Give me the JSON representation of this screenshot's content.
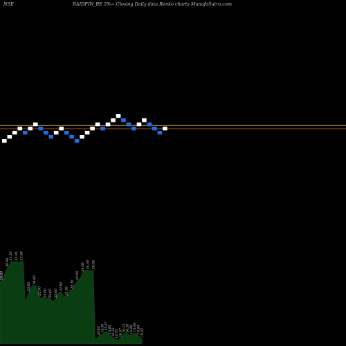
{
  "header": {
    "exchange": "NSE",
    "title": "RAIDFIN_BE 5%~  Closing Daily data  Renko  charts MunafaSutra.com"
  },
  "colors": {
    "background": "#000000",
    "up_brick": "#ffffff",
    "down_brick": "#1e6fe0",
    "ref_line_1": "#d3863a",
    "ref_line_2": "#a0522d",
    "volume_fill": "#0b3d12"
  },
  "chart_data": [
    {
      "type": "renko",
      "title": "",
      "brick_step": 1,
      "bricks": [
        {
          "d": "up",
          "level": 0
        },
        {
          "d": "up",
          "level": 1
        },
        {
          "d": "up",
          "level": 2
        },
        {
          "d": "up",
          "level": 3
        },
        {
          "d": "down",
          "level": 2
        },
        {
          "d": "up",
          "level": 3
        },
        {
          "d": "up",
          "level": 4
        },
        {
          "d": "down",
          "level": 3
        },
        {
          "d": "down",
          "level": 2
        },
        {
          "d": "down",
          "level": 1
        },
        {
          "d": "up",
          "level": 2
        },
        {
          "d": "up",
          "level": 3
        },
        {
          "d": "down",
          "level": 2
        },
        {
          "d": "down",
          "level": 1
        },
        {
          "d": "down",
          "level": 0
        },
        {
          "d": "up",
          "level": 1
        },
        {
          "d": "up",
          "level": 2
        },
        {
          "d": "up",
          "level": 3
        },
        {
          "d": "up",
          "level": 4
        },
        {
          "d": "down",
          "level": 3
        },
        {
          "d": "up",
          "level": 4
        },
        {
          "d": "up",
          "level": 5
        },
        {
          "d": "up",
          "level": 6
        },
        {
          "d": "down",
          "level": 5
        },
        {
          "d": "down",
          "level": 4
        },
        {
          "d": "down",
          "level": 3
        },
        {
          "d": "up",
          "level": 4
        },
        {
          "d": "up",
          "level": 5
        },
        {
          "d": "down",
          "level": 4
        },
        {
          "d": "down",
          "level": 3
        },
        {
          "d": "down",
          "level": 2
        },
        {
          "d": "up",
          "level": 3
        }
      ],
      "reference_levels": [
        3.3,
        2.5
      ]
    },
    {
      "type": "area",
      "series": [
        {
          "values": [
            28.5,
            28.5,
            29.5,
            30.5,
            31.5,
            32,
            33,
            33,
            33,
            33,
            33,
            33,
            33,
            33,
            24,
            25,
            26,
            27,
            27.5,
            27.5,
            27.5,
            26.5,
            25,
            24.5,
            25,
            24.5,
            24.5,
            25,
            24.5,
            24,
            24,
            24.5,
            25.5,
            26,
            26,
            25.5,
            25,
            25,
            26,
            26.5,
            26.5,
            27.5,
            28,
            28.5,
            29,
            29.5,
            30.5,
            31,
            31,
            31,
            31,
            31,
            31,
            15.2,
            15.6,
            15.9,
            16.2,
            16.5,
            16.8,
            17,
            16.8,
            16.2,
            16,
            15.6,
            15.4,
            15.2,
            15.1,
            15.5,
            16.2,
            16.5,
            16.8,
            16.5,
            16.2,
            16.2,
            16.5,
            16.7,
            16.5,
            16.2,
            15.6,
            15.5
          ],
          "labels": [
            {
              "i": 0,
              "text": "28.95"
            },
            {
              "i": 1,
              "text": "29.00"
            },
            {
              "i": 4,
              "text": "30.00"
            },
            {
              "i": 6,
              "text": "31.50"
            },
            {
              "i": 9,
              "text": "32.95"
            },
            {
              "i": 12,
              "text": "27.98"
            },
            {
              "i": 16,
              "text": "23.85"
            },
            {
              "i": 19,
              "text": "24.80"
            },
            {
              "i": 22,
              "text": "22.90"
            },
            {
              "i": 25,
              "text": "22.90"
            },
            {
              "i": 28,
              "text": "22.65"
            },
            {
              "i": 31,
              "text": "22.60"
            },
            {
              "i": 34,
              "text": "22.80"
            },
            {
              "i": 37,
              "text": "21.95"
            },
            {
              "i": 40,
              "text": "22.30"
            },
            {
              "i": 43,
              "text": "23.00"
            },
            {
              "i": 46,
              "text": "24.85"
            },
            {
              "i": 49,
              "text": "24.30"
            },
            {
              "i": 52,
              "text": "26.95"
            },
            {
              "i": 55,
              "text": "26.85"
            },
            {
              "i": 57,
              "text": "14.50"
            },
            {
              "i": 59,
              "text": "15.07"
            },
            {
              "i": 61,
              "text": "15.85"
            },
            {
              "i": 63,
              "text": "16.52"
            },
            {
              "i": 65,
              "text": "16.70"
            },
            {
              "i": 67,
              "text": "16.57"
            },
            {
              "i": 69,
              "text": "16.15"
            },
            {
              "i": 71,
              "text": "16.20"
            },
            {
              "i": 73,
              "text": "15.98"
            },
            {
              "i": 75,
              "text": "15.90"
            },
            {
              "i": 77,
              "text": "14.93"
            },
            {
              "i": 79,
              "text": "15.52"
            },
            {
              "i": 81,
              "text": "14.79"
            }
          ]
        }
      ],
      "ylim": [
        14.5,
        33
      ]
    }
  ]
}
